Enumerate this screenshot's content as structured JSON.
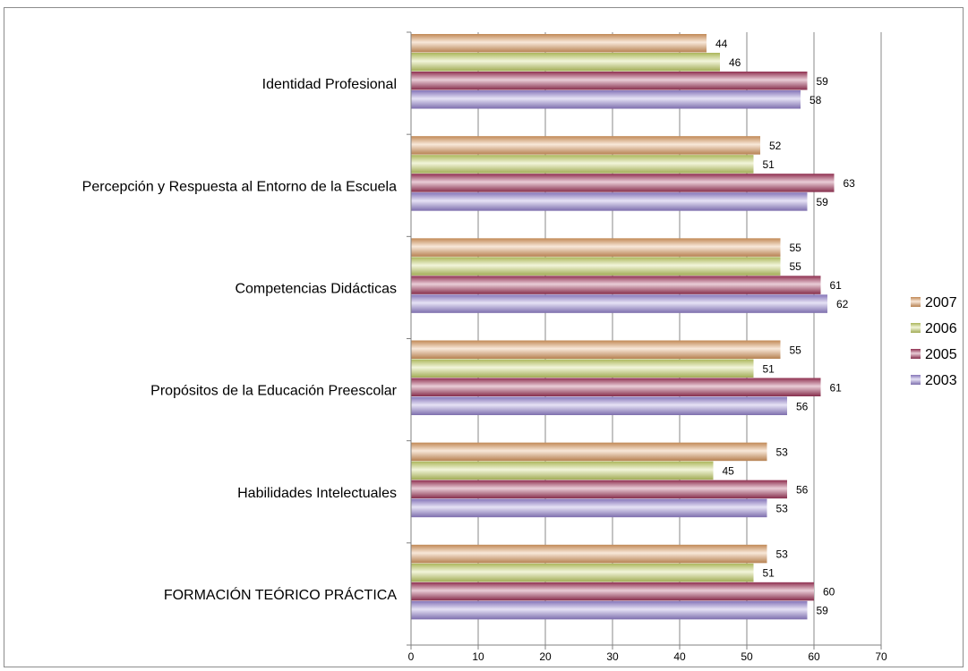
{
  "chart_data": {
    "type": "bar",
    "orientation": "horizontal",
    "categories": [
      "Identidad Profesional",
      "Percepción y Respuesta al Entorno de la Escuela",
      "Competencias Didácticas",
      "Propósitos de la Educación Preescolar",
      "Habilidades Intelectuales",
      "FORMACIÓN TEÓRICO PRÁCTICA"
    ],
    "series": [
      {
        "name": "2007",
        "color": "#E3A165",
        "values": [
          44,
          52,
          55,
          55,
          53,
          53
        ]
      },
      {
        "name": "2006",
        "color": "#C9D66A",
        "values": [
          46,
          51,
          55,
          51,
          45,
          51
        ]
      },
      {
        "name": "2005",
        "color": "#A8385E",
        "values": [
          59,
          63,
          61,
          61,
          56,
          60
        ]
      },
      {
        "name": "2003",
        "color": "#9C8AD8",
        "values": [
          58,
          59,
          62,
          56,
          53,
          59
        ]
      }
    ],
    "xlim": [
      0,
      70
    ],
    "xticks": [
      "0",
      "10",
      "20",
      "30",
      "40",
      "50",
      "60",
      "70"
    ],
    "grid": true,
    "legend": "right",
    "title": "",
    "xlabel": "",
    "ylabel": ""
  }
}
